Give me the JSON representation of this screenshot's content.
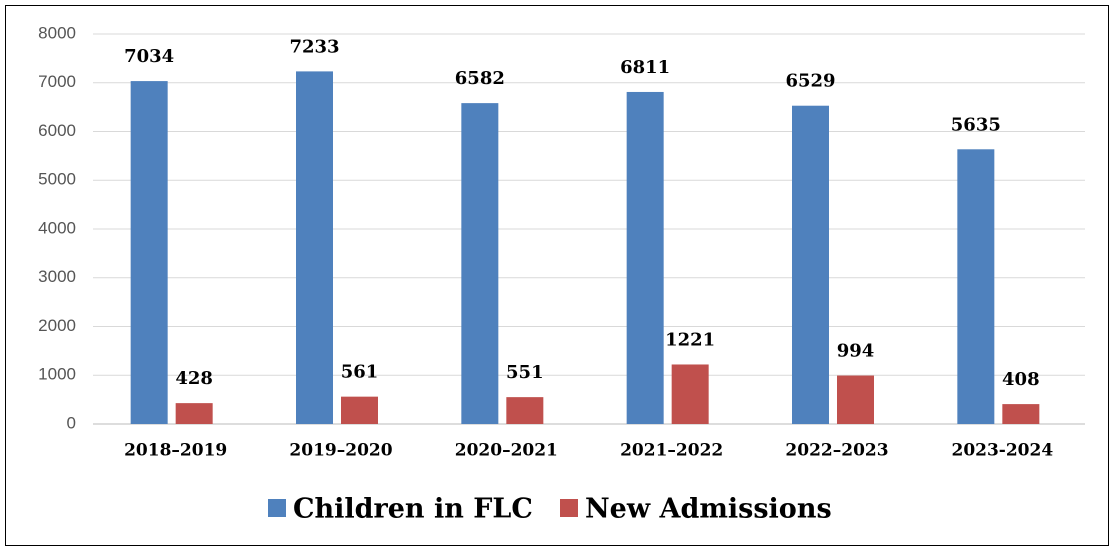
{
  "chart_data": {
    "type": "bar",
    "categories": [
      "2018–2019",
      "2019–2020",
      "2020–2021",
      "2021–2022",
      "2022–2023",
      "2023-2024"
    ],
    "series": [
      {
        "name": "Children in FLC",
        "color": "#4f81bd",
        "values": [
          7034,
          7233,
          6582,
          6811,
          6529,
          5635
        ]
      },
      {
        "name": "New Admissions",
        "color": "#c0504d",
        "values": [
          428,
          561,
          551,
          1221,
          994,
          408
        ]
      }
    ],
    "ylim": [
      0,
      8000
    ],
    "yticks": [
      0,
      1000,
      2000,
      3000,
      4000,
      5000,
      6000,
      7000,
      8000
    ],
    "grid": true,
    "legend": "bottom"
  }
}
